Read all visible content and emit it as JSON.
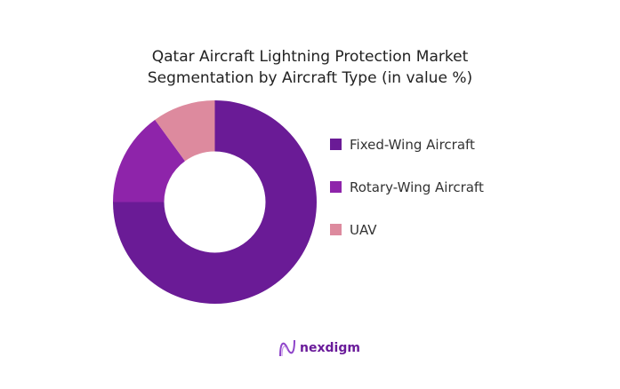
{
  "chart_data": {
    "type": "pie",
    "donut": true,
    "title": "Qatar Aircraft Lightning Protection Market Segmentation by Aircraft Type (in value %)",
    "title_lines": [
      "Qatar Aircraft Lightning Protection Market",
      "Segmentation by Aircraft Type (in value %)"
    ],
    "categories": [
      "Fixed-Wing Aircraft",
      "Rotary-Wing Aircraft",
      "UAV"
    ],
    "values": [
      75,
      15,
      10
    ],
    "colors": [
      "#6a1b96",
      "#8e24aa",
      "#dd8a9e"
    ],
    "legend_position": "right"
  },
  "brand": {
    "name": "nexdigm",
    "color": "#6a1b9a"
  }
}
